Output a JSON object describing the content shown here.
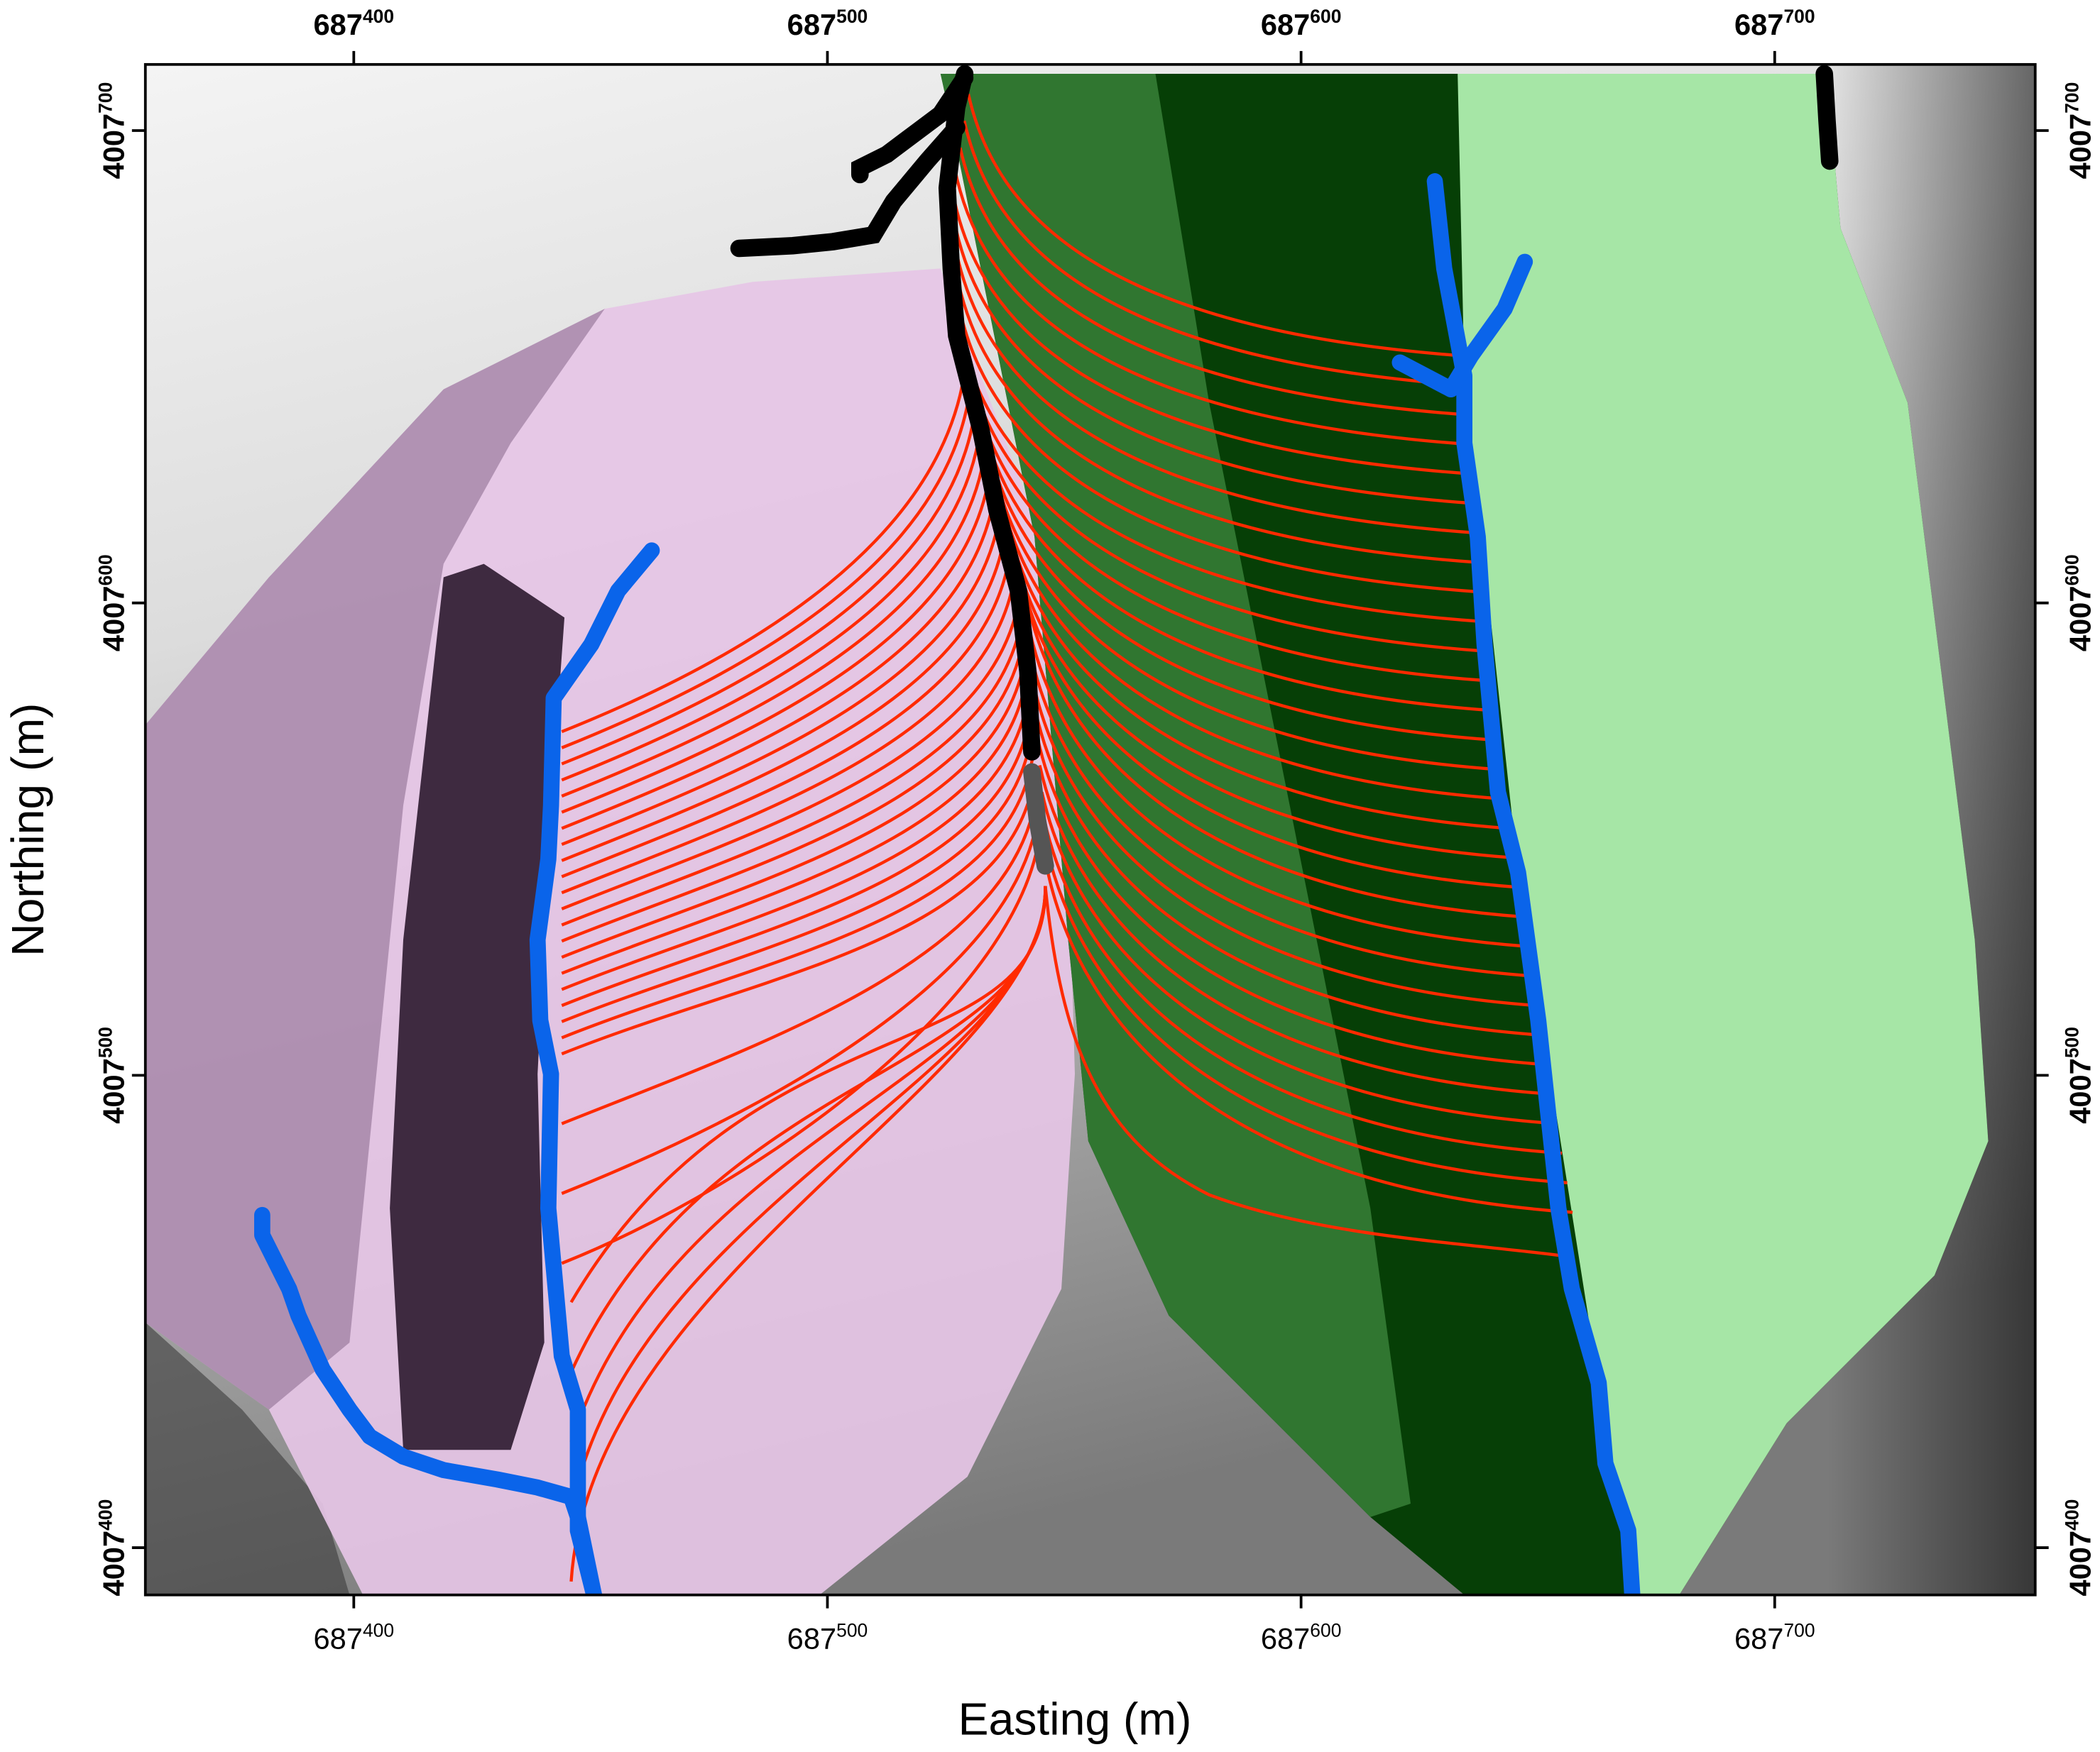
{
  "chart_data": {
    "type": "map",
    "xlabel": "Easting (m)",
    "ylabel": "Northing (m)",
    "xlim": [
      687356,
      687755
    ],
    "ylim": [
      4007390,
      4007714
    ],
    "xticks": [
      687400,
      687500,
      687600,
      687700
    ],
    "yticks": [
      4007400,
      4007500,
      4007600,
      4007700
    ]
  }
}
